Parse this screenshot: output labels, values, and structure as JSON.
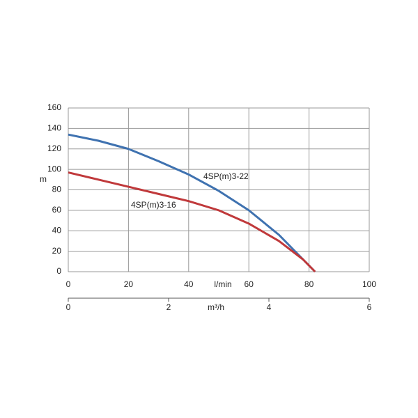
{
  "chart_data": {
    "type": "line",
    "x": [
      0,
      10,
      20,
      30,
      40,
      50,
      60,
      70,
      78,
      82
    ],
    "series": [
      {
        "name": "4SP(m)3-22",
        "color": "#3f72b0",
        "values": [
          134,
          128,
          120,
          108,
          95,
          79,
          60,
          36,
          12,
          0
        ]
      },
      {
        "name": "4SP(m)3-16",
        "color": "#c0393b",
        "values": [
          97,
          90,
          83,
          76,
          69,
          60,
          47,
          30,
          12,
          0
        ]
      }
    ],
    "xlim": [
      0,
      100
    ],
    "xticks": [
      0,
      20,
      40,
      60,
      80,
      100
    ],
    "xlabel": "l/min",
    "ylim": [
      0,
      160
    ],
    "yticks": [
      0,
      20,
      40,
      60,
      80,
      100,
      120,
      140,
      160
    ],
    "ylabel": "m",
    "x2lim": [
      0,
      6
    ],
    "x2ticks": [
      0,
      2,
      4,
      6
    ],
    "x2label": "m³/h",
    "grid": true
  }
}
